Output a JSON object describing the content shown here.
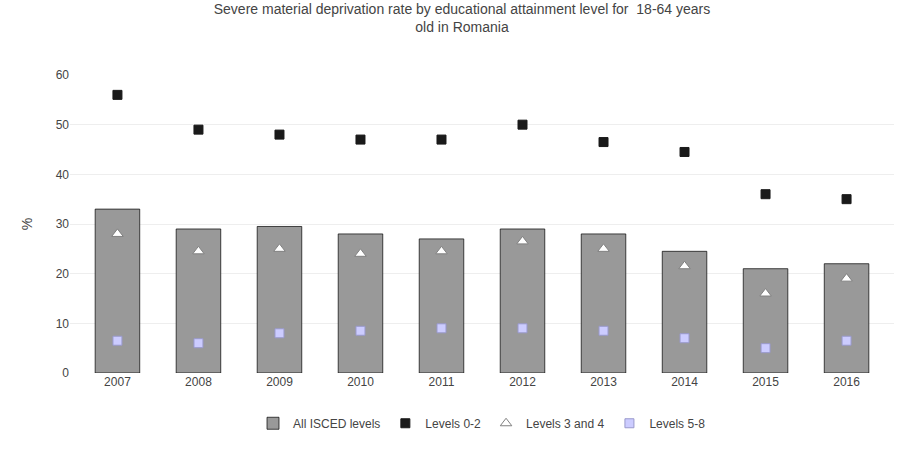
{
  "chart_data": {
    "type": "bar",
    "title": "Severe material deprivation rate by educational attainment level for  18-64 years\nold in Romania",
    "ylabel": "%",
    "categories": [
      "2007",
      "2008",
      "2009",
      "2010",
      "2011",
      "2012",
      "2013",
      "2014",
      "2015",
      "2016"
    ],
    "series": [
      {
        "name": "All ISCED levels",
        "type": "bar",
        "color": "#999999",
        "values": [
          33,
          29,
          29.5,
          28,
          27,
          29,
          28,
          24.5,
          21,
          22
        ]
      },
      {
        "name": "Levels 0-2",
        "type": "scatter",
        "marker": "square",
        "color": "#1a1a1a",
        "values": [
          56,
          49,
          48,
          47,
          47,
          50,
          46.5,
          44.5,
          36,
          35
        ]
      },
      {
        "name": "Levels 3 and 4",
        "type": "scatter",
        "marker": "triangle-up",
        "color": "#ffffff",
        "values": [
          28,
          24.5,
          25,
          24,
          24.5,
          26.5,
          25,
          21.5,
          16,
          19
        ]
      },
      {
        "name": "Levels 5-8",
        "type": "scatter",
        "marker": "square",
        "color": "#ccccff",
        "values": [
          6.5,
          6,
          8,
          8.5,
          9,
          9,
          8.5,
          7,
          5,
          6.5
        ]
      }
    ],
    "ylim": [
      0,
      60
    ],
    "yticks": [
      0,
      10,
      20,
      30,
      40,
      50,
      60
    ],
    "grid": true,
    "legend": "bottom"
  }
}
